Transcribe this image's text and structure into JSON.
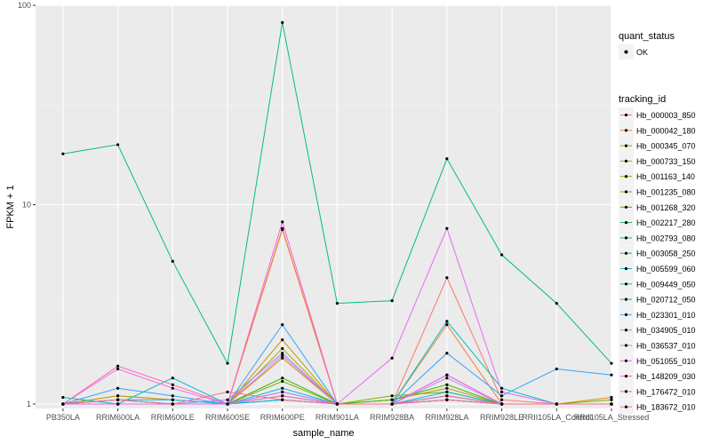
{
  "chart_data": {
    "type": "line",
    "xlabel": "sample_name",
    "ylabel": "FPKM + 1",
    "y_scale": "log10",
    "ylim": [
      0.95,
      100
    ],
    "y_ticks": [
      1,
      10,
      100
    ],
    "y_tick_labels": [
      "1",
      "10",
      "100"
    ],
    "grid": true,
    "legend_position": "right",
    "categories": [
      "PB350LA",
      "RRIM600LA",
      "RRIM600LE",
      "RRIM600SE",
      "RRIM600PE",
      "RRIM901LA",
      "RRIM928BA",
      "RRIM928LA",
      "RRIM928LE",
      "RRII105LA_Control",
      "RRII105LA_Stressed"
    ],
    "quant_status_legend": {
      "title": "quant_status",
      "items": [
        "OK"
      ]
    },
    "tracking_legend_title": "tracking_id",
    "series": [
      {
        "name": "Hb_000003_850",
        "color": "#F8766D",
        "values": [
          1.0,
          1.1,
          1.05,
          1.0,
          7.6,
          1.0,
          1.0,
          4.3,
          1.05,
          1.0,
          1.0
        ]
      },
      {
        "name": "Hb_000042_180",
        "color": "#EA8331",
        "values": [
          1.0,
          1.0,
          1.0,
          1.0,
          7.5,
          1.0,
          1.0,
          2.5,
          1.0,
          1.0,
          1.0
        ]
      },
      {
        "name": "Hb_000345_070",
        "color": "#D89000",
        "values": [
          1.0,
          1.0,
          1.0,
          1.0,
          1.7,
          1.0,
          1.0,
          1.1,
          1.0,
          1.0,
          1.08
        ]
      },
      {
        "name": "Hb_000733_150",
        "color": "#C09B00",
        "values": [
          1.0,
          1.1,
          1.05,
          1.0,
          2.1,
          1.0,
          1.05,
          1.2,
          1.0,
          1.0,
          1.0
        ]
      },
      {
        "name": "Hb_001163_140",
        "color": "#A3A500",
        "values": [
          1.0,
          1.0,
          1.0,
          1.0,
          1.9,
          1.0,
          1.0,
          1.05,
          1.0,
          1.0,
          1.0
        ]
      },
      {
        "name": "Hb_001235_080",
        "color": "#7CAE00",
        "values": [
          1.0,
          1.05,
          1.0,
          1.0,
          1.3,
          1.0,
          1.1,
          1.15,
          1.0,
          1.0,
          1.05
        ]
      },
      {
        "name": "Hb_001268_320",
        "color": "#39B600",
        "values": [
          1.0,
          1.05,
          1.0,
          1.0,
          1.35,
          1.0,
          1.05,
          1.25,
          1.0,
          1.0,
          1.0
        ]
      },
      {
        "name": "Hb_002217_280",
        "color": "#00BB4E",
        "values": [
          1.0,
          1.0,
          1.0,
          1.0,
          1.05,
          1.0,
          1.0,
          1.05,
          1.0,
          1.0,
          1.0
        ]
      },
      {
        "name": "Hb_002793_080",
        "color": "#00BF7D",
        "values": [
          18,
          20,
          5.2,
          1.6,
          82,
          3.2,
          3.3,
          17,
          5.6,
          3.2,
          1.6
        ]
      },
      {
        "name": "Hb_003058_250",
        "color": "#00C1A3",
        "values": [
          1.08,
          1.0,
          1.0,
          1.0,
          1.1,
          1.0,
          1.0,
          1.1,
          1.0,
          1.0,
          1.0
        ]
      },
      {
        "name": "Hb_005599_060",
        "color": "#00BFC4",
        "values": [
          1.0,
          1.0,
          1.35,
          1.0,
          1.15,
          1.0,
          1.0,
          2.6,
          1.2,
          1.0,
          1.0
        ]
      },
      {
        "name": "Hb_009449_050",
        "color": "#00BAE0",
        "values": [
          1.0,
          1.05,
          1.05,
          1.0,
          1.2,
          1.0,
          1.0,
          1.15,
          1.0,
          1.0,
          1.0
        ]
      },
      {
        "name": "Hb_020712_050",
        "color": "#00B0F6",
        "values": [
          1.0,
          1.0,
          1.0,
          1.0,
          1.05,
          1.0,
          1.0,
          1.05,
          1.0,
          1.0,
          1.0
        ]
      },
      {
        "name": "Hb_023301_010",
        "color": "#35A2FF",
        "values": [
          1.0,
          1.2,
          1.1,
          1.0,
          2.5,
          1.0,
          1.0,
          1.8,
          1.1,
          1.5,
          1.4
        ]
      },
      {
        "name": "Hb_034905_010",
        "color": "#9590FF",
        "values": [
          1.0,
          1.0,
          1.0,
          1.05,
          1.8,
          1.0,
          1.0,
          1.4,
          1.0,
          1.0,
          1.0
        ]
      },
      {
        "name": "Hb_036537_010",
        "color": "#C77CFF",
        "values": [
          1.0,
          1.05,
          1.0,
          1.0,
          1.15,
          1.0,
          1.0,
          1.35,
          1.0,
          1.0,
          1.0
        ]
      },
      {
        "name": "Hb_051055_010",
        "color": "#E76BF3",
        "values": [
          1.0,
          1.0,
          1.0,
          1.0,
          1.75,
          1.0,
          1.7,
          7.6,
          1.15,
          1.0,
          1.0
        ]
      },
      {
        "name": "Hb_148209_030",
        "color": "#FA62DB",
        "values": [
          1.0,
          1.5,
          1.2,
          1.0,
          8.2,
          1.0,
          1.0,
          1.4,
          1.0,
          1.0,
          1.0
        ]
      },
      {
        "name": "Hb_176472_010",
        "color": "#FF62BC",
        "values": [
          1.0,
          1.55,
          1.25,
          1.0,
          1.1,
          1.0,
          1.0,
          1.1,
          1.0,
          1.0,
          1.0
        ]
      },
      {
        "name": "Hb_183672_010",
        "color": "#FF6C91",
        "values": [
          1.0,
          1.05,
          1.0,
          1.15,
          1.05,
          1.0,
          1.0,
          1.05,
          1.0,
          1.0,
          1.0
        ]
      }
    ]
  }
}
